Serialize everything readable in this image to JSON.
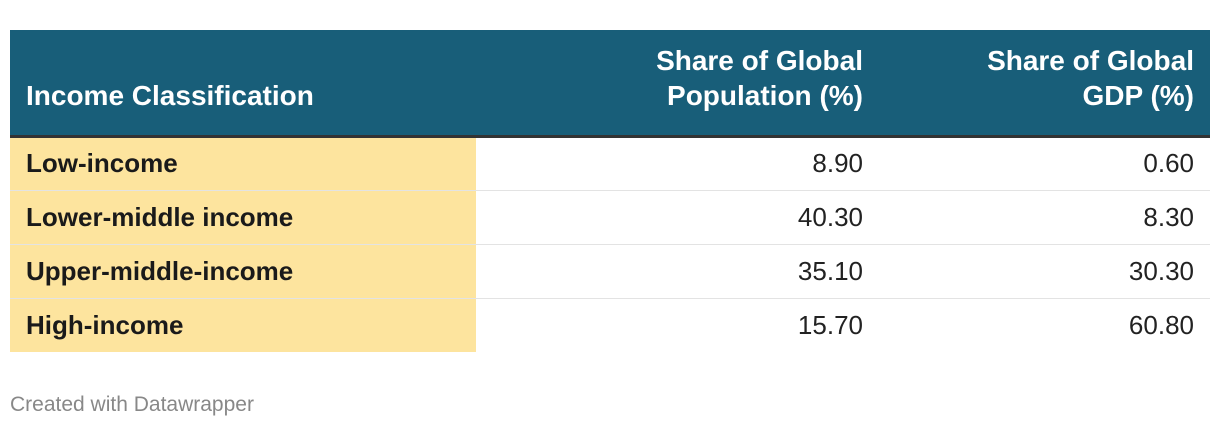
{
  "chart_data": {
    "type": "table",
    "columns": [
      "Income Classification",
      "Share of Global Population (%)",
      "Share of Global GDP (%)"
    ],
    "header_lines": [
      [
        "Income Classification"
      ],
      [
        "Share of Global",
        "Population (%)"
      ],
      [
        "Share of Global",
        "GDP (%)"
      ]
    ],
    "rows": [
      {
        "label": "Low-income",
        "population": "8.90",
        "gdp": "0.60"
      },
      {
        "label": "Lower-middle income",
        "population": "40.30",
        "gdp": "8.30"
      },
      {
        "label": "Upper-middle-income",
        "population": "35.10",
        "gdp": "30.30"
      },
      {
        "label": "High-income",
        "population": "15.70",
        "gdp": "60.80"
      }
    ]
  },
  "colors": {
    "header_background": "#185e79",
    "label_column_background": "#fde49e",
    "header_text": "#ffffff"
  },
  "footer": {
    "credit": "Created with Datawrapper"
  }
}
